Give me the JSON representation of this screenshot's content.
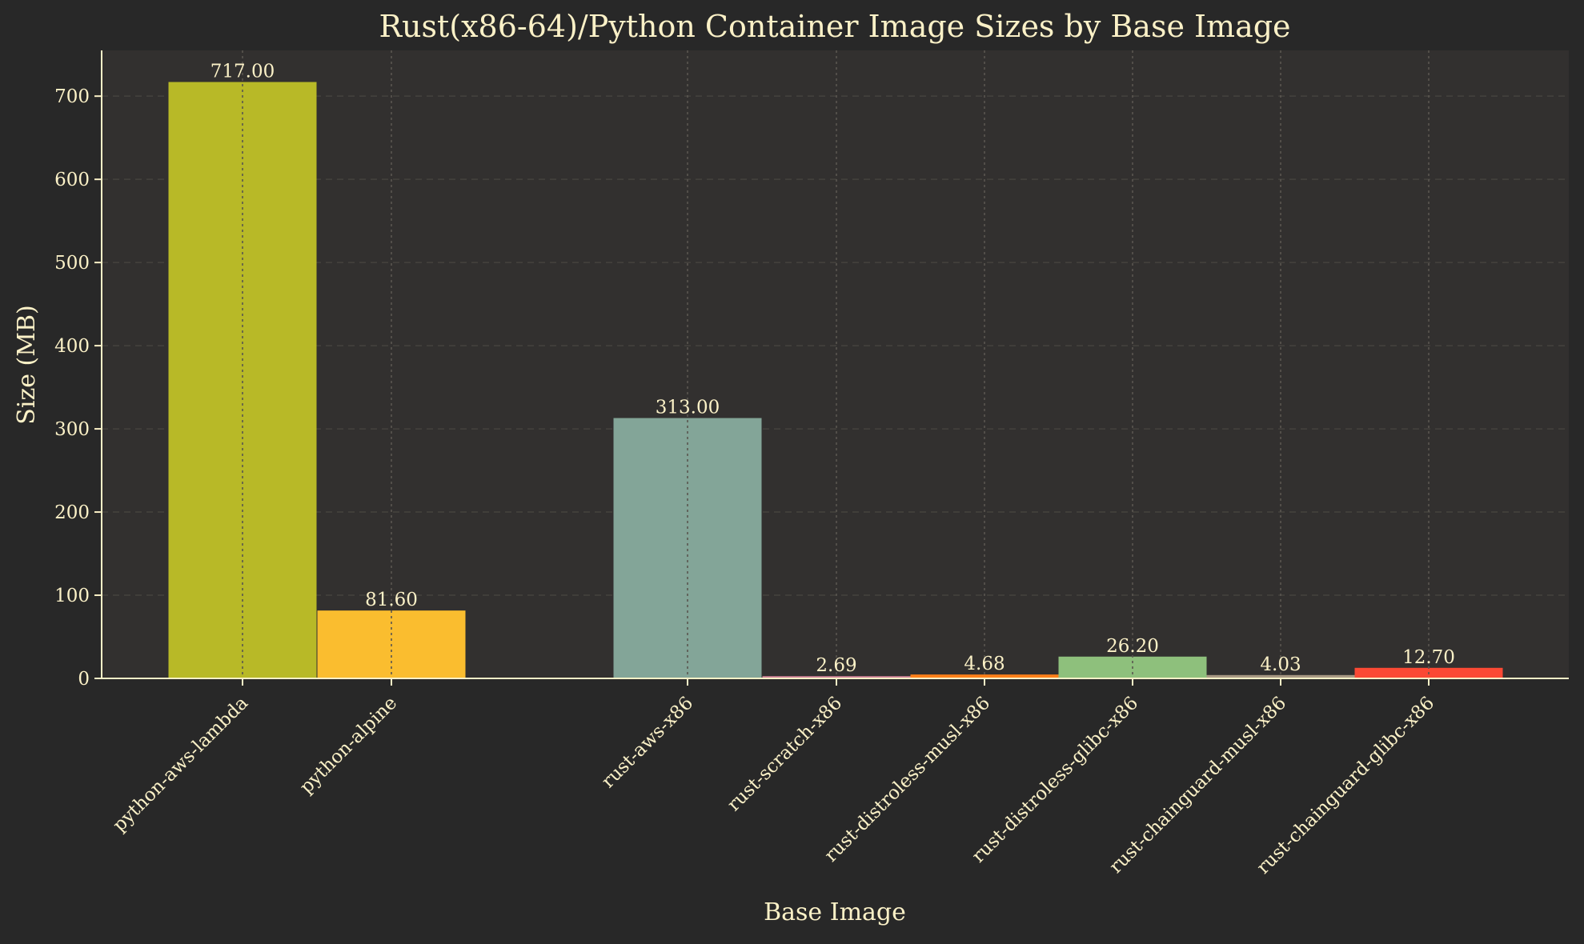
{
  "chart_data": {
    "type": "bar",
    "title": "Rust(x86-64)/Python Container Image Sizes by Base Image",
    "xlabel": "Base Image",
    "ylabel": "Size (MB)",
    "ylim": [
      0,
      755
    ],
    "yticks": [
      0,
      100,
      200,
      300,
      400,
      500,
      600,
      700
    ],
    "grid": true,
    "categories": [
      "python-aws-lambda",
      "python-alpine",
      "rust-aws-x86",
      "rust-scratch-x86",
      "rust-distroless-musl-x86",
      "rust-distroless-glibc-x86",
      "rust-chainguard-musl-x86",
      "rust-chainguard-glibc-x86"
    ],
    "values": [
      717.0,
      81.6,
      313.0,
      2.69,
      4.68,
      26.2,
      4.03,
      12.7
    ],
    "data_labels": [
      "717.00",
      "81.60",
      "313.00",
      "2.69",
      "4.68",
      "26.20",
      "4.03",
      "12.70"
    ],
    "colors": [
      "#b8b927",
      "#fabd2f",
      "#83a598",
      "#d3869b",
      "#fe8019",
      "#8ec07c",
      "#a89984",
      "#fb4934"
    ],
    "background": "#282828",
    "plot_background": "#32302f",
    "text_color": "#fbf1c7"
  }
}
